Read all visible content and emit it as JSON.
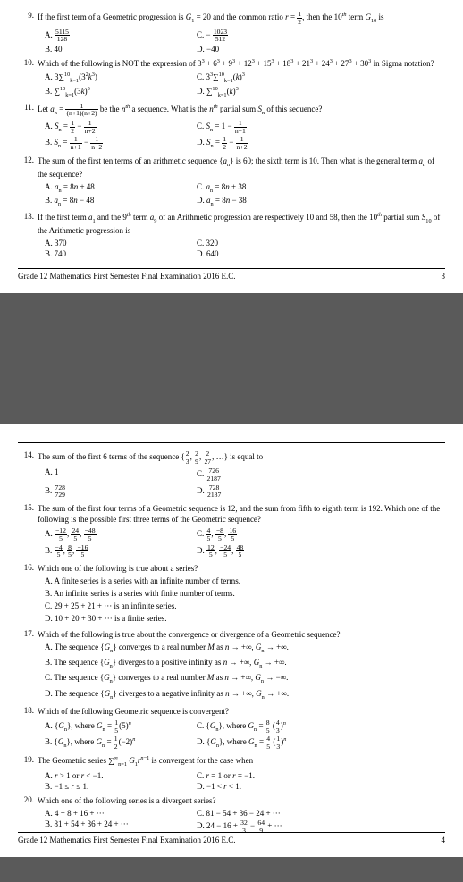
{
  "footer_text": "Grade 12 Mathematics First Semester Final Examination 2016 E.C.",
  "page1_num": "3",
  "page2_num": "4",
  "questions_p1": [
    {
      "num": "9.",
      "text": "If the first term of a Geometric progression is G₁ = 20 and the common ratio r = ½, then the 10ᵗʰ term G₁₀ is",
      "opts": [
        {
          "A": "A. 5115/128",
          "C": "C. − 1023/512"
        },
        {
          "B": "B. 40",
          "D": "D. −40"
        }
      ]
    },
    {
      "num": "10.",
      "text": "Which of the following is NOT the expression of 3³ + 6³ + 9³ + 12³ + 15³ + 18³ + 21³ + 24³ + 27³ + 30³ in Sigma notation?",
      "opts": [
        {
          "A": "A. 3∑ₖ₌₁¹⁰(3²k³)",
          "C": "C. 3³∑ₖ₌₁¹⁰(k)³"
        },
        {
          "B": "B. ∑ₖ₌₁¹⁰(3k)³",
          "D": "D. ∑ₖ₌₁¹⁰(k)³"
        }
      ]
    },
    {
      "num": "11.",
      "text": "Let aₙ = 1/((n+1)(n+2)) be the nᵗʰ a sequence. What is the nᵗʰ partial sum Sₙ of this sequence?",
      "opts": [
        {
          "A": "A. Sₙ = ½ − 1/(n+2)",
          "C": "C. Sₙ = 1 − 1/(n+1)"
        },
        {
          "B": "B. Sₙ = 1/(n+1) − 1/(n+2)",
          "D": "D. Sₙ = ½ − 1/(n+2)"
        }
      ]
    },
    {
      "num": "12.",
      "text": "The sum of the first ten terms of an arithmetic sequence {aₙ} is 60; the sixth term is 10. Then what is the general term aₙ of the sequence?",
      "opts": [
        {
          "A": "A. aₙ = 8n + 48",
          "C": "C. aₙ = 8n + 38"
        },
        {
          "B": "B. aₙ = 8n − 48",
          "D": "D. aₙ = 8n − 38"
        }
      ]
    },
    {
      "num": "13.",
      "text": "If the first term a₁ and the 9ᵗʰ term a₉ of an Arithmetic progression are respectively 10 and 58, then the 10ᵗʰ partial sum S₁₀ of the Arithmetic progression is",
      "opts": [
        {
          "A": "A. 370",
          "C": "C. 320"
        },
        {
          "B": "B. 740",
          "D": "D. 640"
        }
      ]
    }
  ],
  "questions_p2": [
    {
      "num": "14.",
      "text": "The sum of the first 6 terms of the sequence {⅔, 2/9, 2/27, …} is equal to",
      "opts": [
        {
          "A": "A. 1",
          "C": "C. 726/2187"
        },
        {
          "B": "B. 728/729",
          "D": "D. 728/2187"
        }
      ]
    },
    {
      "num": "15.",
      "text": "The sum of the first four terms of a Geometric sequence is 12, and the sum from fifth to eighth term is 192. Which one of the following is the possible first three terms of the Geometric sequence?",
      "opts": [
        {
          "A": "A. −12/5, 24/5, −48/5",
          "C": "C. 4/5, −8/5, 16/5"
        },
        {
          "B": "B. −4/5, 8/5, −16/5",
          "D": "D. 12/5, −24/5, 48/5"
        }
      ]
    },
    {
      "num": "16.",
      "text": "Which one of the following is true about a series?",
      "subs": [
        "A. A finite series is a series with an infinite number of terms.",
        "B. An infinite series is a series with finite number of terms.",
        "C. 29 + 25 + 21 + ··· is an infinite series.",
        "D. 10 + 20 + 30 + ··· is a finite series."
      ]
    },
    {
      "num": "17.",
      "text": "Which of the following is true about the convergence or divergence of a Geometric sequence?",
      "subs": [
        "A. The sequence {Gₙ} converges to a real number M as n → +∞, Gₙ → +∞.",
        "B. The sequence {Gₙ} diverges to a positive infinity as n → +∞, Gₙ → +∞.",
        "C. The sequence {Gₙ} converges to a real number M as n → +∞, Gₙ → −∞.",
        "D. The sequence {Gₙ} diverges to a negative infinity as n → +∞, Gₙ → +∞."
      ]
    },
    {
      "num": "18.",
      "text": "Which of the following Geometric sequence is convergent?",
      "opts": [
        {
          "A": "A. {Gₙ}, where Gₙ = ⅕(5)ⁿ",
          "C": "C. {Gₙ}, where Gₙ = 8/5 (4/3)ⁿ"
        },
        {
          "B": "B. {Gₙ}, where Gₙ = ½(−2)ⁿ",
          "D": "D. {Gₙ}, where Gₙ = ⅘ (⅓)ⁿ"
        }
      ]
    },
    {
      "num": "19.",
      "text": "The Geometric series ∑ₙ₌₁^∞ G₁rⁿ⁻¹ is convergent for the case when",
      "opts": [
        {
          "A": "A. r > 1 or r < −1.",
          "C": "C. r = 1 or r = −1."
        },
        {
          "B": "B. −1 ≤ r ≤ 1.",
          "D": "D. −1 < r < 1."
        }
      ]
    },
    {
      "num": "20.",
      "text": "Which one of the following series is a divergent series?",
      "opts": [
        {
          "A": "A. 4 + 8 + 16 + ···",
          "C": "C. 81 − 54 + 36 − 24 + ···"
        },
        {
          "B": "B. 81 + 54 + 36 + 24 + ···",
          "D": "D. 24 − 16 + 32/3 − 64/9 + ···"
        }
      ]
    }
  ]
}
